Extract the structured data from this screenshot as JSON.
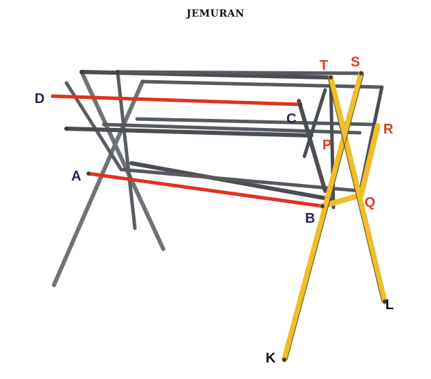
{
  "title": "JEMURAN",
  "colors": {
    "frame": "#6f7378",
    "frame_dark": "#4a4e53",
    "highlight_red": "#e0321e",
    "highlight_yellow": "#f0be28",
    "label_blue": "#2b2150",
    "label_red": "#e03a24",
    "label_black": "#111111"
  },
  "labels": {
    "A": "A",
    "B": "B",
    "C": "C",
    "D": "D",
    "K": "K",
    "L": "L",
    "P": "P",
    "Q": "Q",
    "R": "R",
    "S": "S",
    "T": "T"
  }
}
